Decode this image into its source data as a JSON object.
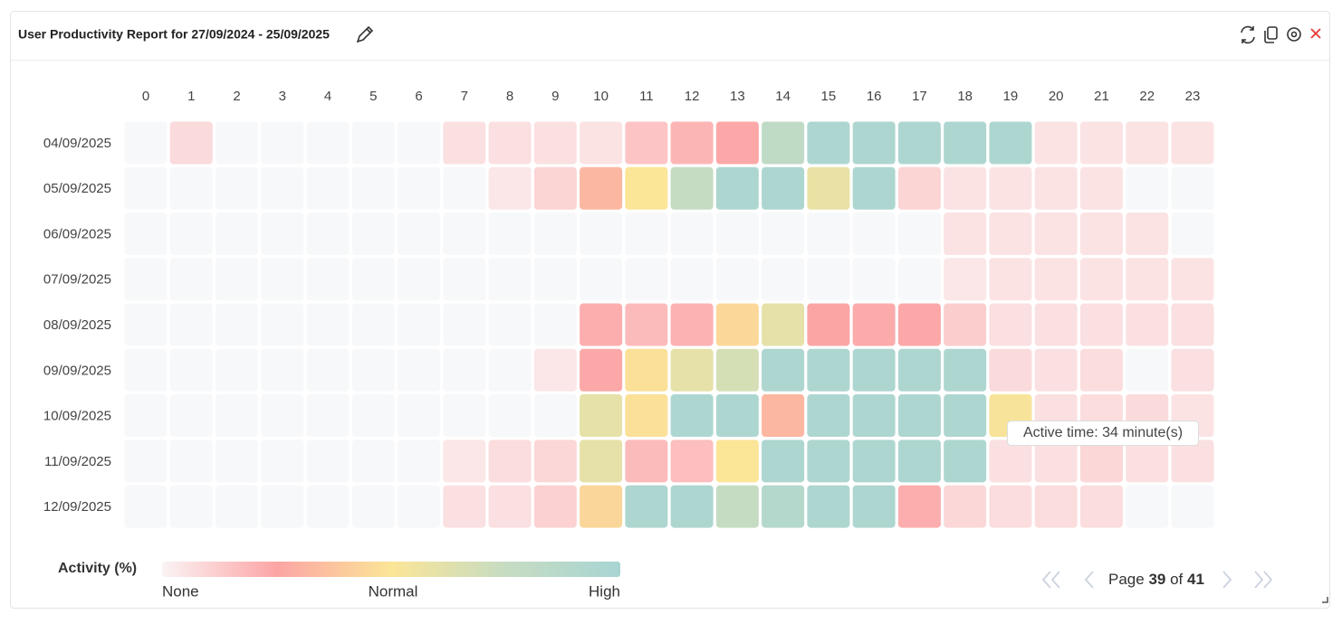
{
  "widget": {
    "title": "User Productivity Report for 27/09/2024 - 25/09/2025"
  },
  "chart_data": {
    "type": "heatmap",
    "x": [
      0,
      1,
      2,
      3,
      4,
      5,
      6,
      7,
      8,
      9,
      10,
      11,
      12,
      13,
      14,
      15,
      16,
      17,
      18,
      19,
      20,
      21,
      22,
      23
    ],
    "y": [
      "04/09/2025",
      "05/09/2025",
      "06/09/2025",
      "07/09/2025",
      "08/09/2025",
      "09/09/2025",
      "10/09/2025",
      "11/09/2025",
      "12/09/2025"
    ],
    "values": [
      [
        null,
        8,
        null,
        null,
        null,
        null,
        null,
        6,
        6,
        6,
        5,
        15,
        20,
        24,
        80,
        95,
        95,
        95,
        95,
        95,
        5,
        5,
        5,
        5
      ],
      [
        null,
        null,
        null,
        null,
        null,
        null,
        null,
        null,
        4,
        10,
        32,
        50,
        75,
        95,
        95,
        58,
        95,
        10,
        5,
        5,
        5,
        5,
        null,
        null
      ],
      [
        null,
        null,
        null,
        null,
        null,
        null,
        null,
        null,
        null,
        null,
        null,
        null,
        null,
        null,
        null,
        null,
        null,
        null,
        5,
        5,
        5,
        5,
        5,
        null
      ],
      [
        null,
        null,
        null,
        null,
        null,
        null,
        null,
        null,
        null,
        null,
        null,
        null,
        null,
        null,
        null,
        null,
        null,
        null,
        4,
        5,
        5,
        5,
        5,
        5
      ],
      [
        null,
        null,
        null,
        null,
        null,
        null,
        null,
        null,
        null,
        null,
        22,
        18,
        21,
        45,
        60,
        25,
        23,
        24,
        12,
        6,
        6,
        6,
        6,
        6
      ],
      [
        null,
        null,
        null,
        null,
        null,
        null,
        null,
        null,
        null,
        4,
        24,
        48,
        60,
        68,
        95,
        95,
        95,
        95,
        95,
        8,
        6,
        7,
        null,
        6
      ],
      [
        null,
        null,
        null,
        null,
        null,
        null,
        null,
        null,
        null,
        null,
        60,
        48,
        95,
        95,
        32,
        95,
        95,
        95,
        95,
        52,
        6,
        7,
        8,
        5
      ],
      [
        null,
        null,
        null,
        null,
        null,
        null,
        null,
        4,
        7,
        9,
        60,
        18,
        17,
        50,
        95,
        95,
        95,
        95,
        95,
        6,
        6,
        9,
        6,
        6
      ],
      [
        null,
        null,
        null,
        null,
        null,
        null,
        null,
        6,
        6,
        11,
        44,
        95,
        95,
        75,
        90,
        95,
        95,
        22,
        9,
        7,
        7,
        7,
        null,
        null
      ]
    ],
    "colorscale": [
      [
        0,
        "#fbf3f4"
      ],
      [
        25,
        "#fca5a5"
      ],
      [
        50,
        "#fbe597"
      ],
      [
        75,
        "#c6dcc2"
      ],
      [
        100,
        "#a8d5d3"
      ]
    ],
    "empty_color": "#f7f8fa",
    "legend": {
      "title": "Activity (%)",
      "low": "None",
      "mid": "Normal",
      "high": "High"
    },
    "tooltip": "Active time: 34 minute(s)"
  },
  "pagination": {
    "label": "Page",
    "current": 39,
    "of": "of",
    "total": 41
  }
}
